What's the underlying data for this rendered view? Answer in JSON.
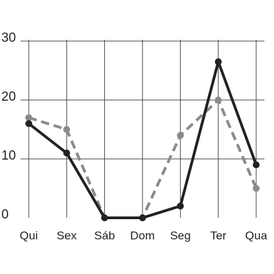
{
  "chart_data": {
    "type": "line",
    "categories": [
      "Qui",
      "Sex",
      "Sáb",
      "Dom",
      "Seg",
      "Ter",
      "Qua"
    ],
    "series": [
      {
        "color": "#222222",
        "dashed": false,
        "values": [
          16,
          11,
          0,
          0,
          2,
          26.5,
          9
        ]
      },
      {
        "color": "#8a8a8a",
        "dashed": true,
        "values": [
          17,
          15,
          0,
          0,
          14,
          20,
          5
        ]
      }
    ],
    "ylim": [
      0,
      30
    ],
    "yticks": [
      0,
      10,
      20,
      30
    ],
    "grid": true
  }
}
